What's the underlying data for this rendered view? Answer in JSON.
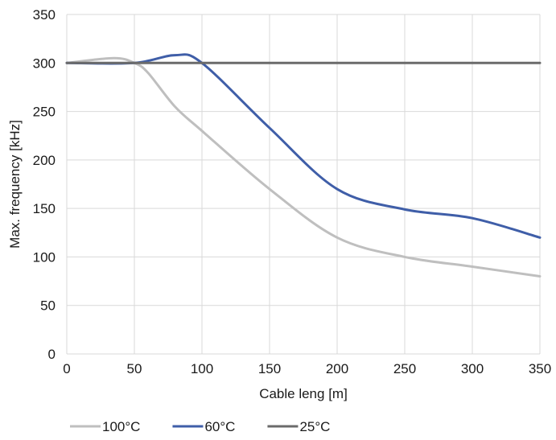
{
  "chart_data": {
    "type": "line",
    "title": "",
    "xlabel": "Cable leng [m]",
    "ylabel": "Max. frequency [kHz]",
    "xlim": [
      0,
      350
    ],
    "ylim": [
      0,
      350
    ],
    "x_ticks": [
      0,
      50,
      100,
      150,
      200,
      250,
      300,
      350
    ],
    "y_ticks": [
      0,
      50,
      100,
      150,
      200,
      250,
      300,
      350
    ],
    "grid": "vertical and horizontal gridlines",
    "smooth": true,
    "legend_position": "bottom-left",
    "series": [
      {
        "name": "100°C",
        "color": "#bfbfbf",
        "points": [
          [
            0,
            300
          ],
          [
            35,
            305
          ],
          [
            50,
            300
          ],
          [
            60,
            290
          ],
          [
            80,
            255
          ],
          [
            100,
            230
          ],
          [
            150,
            170
          ],
          [
            200,
            120
          ],
          [
            250,
            100
          ],
          [
            300,
            90
          ],
          [
            350,
            80
          ]
        ]
      },
      {
        "name": "60°C",
        "color": "#3f5ea8",
        "points": [
          [
            0,
            300
          ],
          [
            50,
            300
          ],
          [
            80,
            308
          ],
          [
            100,
            300
          ],
          [
            150,
            233
          ],
          [
            200,
            170
          ],
          [
            250,
            149
          ],
          [
            300,
            140
          ],
          [
            350,
            120
          ]
        ]
      },
      {
        "name": "25°C",
        "color": "#6b6b6b",
        "points": [
          [
            0,
            300
          ],
          [
            350,
            300
          ]
        ]
      }
    ]
  }
}
